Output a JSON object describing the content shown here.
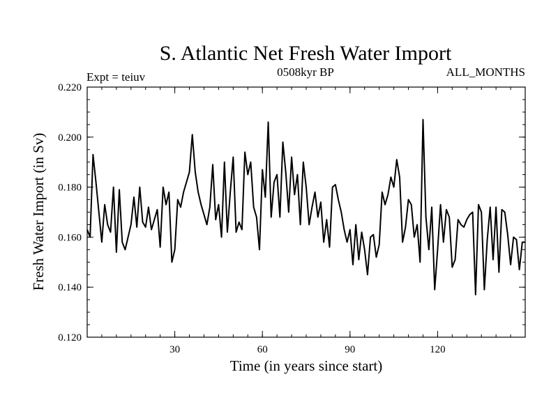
{
  "chart_data": {
    "type": "line",
    "title": "S. Atlantic Net Fresh Water Import",
    "subtitle": "0508kyr BP",
    "left_annotation": "Expt = teiuv",
    "right_annotation": "ALL_MONTHS",
    "xlabel": "Time (in years since start)",
    "ylabel": "Fresh Water Import (in Sv)",
    "xlim": [
      0,
      150
    ],
    "ylim": [
      0.12,
      0.22
    ],
    "xticks": [
      30,
      60,
      90,
      120
    ],
    "yticks": [
      0.12,
      0.14,
      0.16,
      0.18,
      0.2,
      0.22
    ],
    "ytick_labels": [
      "0.120",
      "0.140",
      "0.160",
      "0.180",
      "0.200",
      "0.220"
    ],
    "xminor_step": 5,
    "yminor_step": 0.005,
    "grid": false,
    "series": [
      {
        "name": "Net Fresh Water Import",
        "color": "#000000",
        "x": [
          0,
          1,
          2,
          3,
          4,
          5,
          6,
          7,
          8,
          9,
          10,
          11,
          12,
          13,
          14,
          15,
          16,
          17,
          18,
          19,
          20,
          21,
          22,
          23,
          24,
          25,
          26,
          27,
          28,
          29,
          30,
          31,
          32,
          33,
          34,
          35,
          36,
          37,
          38,
          39,
          40,
          41,
          42,
          43,
          44,
          45,
          46,
          47,
          48,
          49,
          50,
          51,
          52,
          53,
          54,
          55,
          56,
          57,
          58,
          59,
          60,
          61,
          62,
          63,
          64,
          65,
          66,
          67,
          68,
          69,
          70,
          71,
          72,
          73,
          74,
          75,
          76,
          77,
          78,
          79,
          80,
          81,
          82,
          83,
          84,
          85,
          86,
          87,
          88,
          89,
          90,
          91,
          92,
          93,
          94,
          95,
          96,
          97,
          98,
          99,
          100,
          101,
          102,
          103,
          104,
          105,
          106,
          107,
          108,
          109,
          110,
          111,
          112,
          113,
          114,
          115,
          116,
          117,
          118,
          119,
          120,
          121,
          122,
          123,
          124,
          125,
          126,
          127,
          128,
          129,
          130,
          131,
          132,
          133,
          134,
          135,
          136,
          137,
          138,
          139,
          140,
          141,
          142,
          143,
          144,
          145,
          146,
          147,
          148,
          149,
          150
        ],
        "values": [
          0.163,
          0.16,
          0.193,
          0.182,
          0.17,
          0.158,
          0.173,
          0.165,
          0.162,
          0.18,
          0.154,
          0.179,
          0.158,
          0.155,
          0.16,
          0.165,
          0.176,
          0.164,
          0.18,
          0.166,
          0.164,
          0.172,
          0.163,
          0.167,
          0.171,
          0.156,
          0.18,
          0.173,
          0.178,
          0.15,
          0.155,
          0.175,
          0.172,
          0.178,
          0.182,
          0.186,
          0.201,
          0.186,
          0.178,
          0.173,
          0.169,
          0.165,
          0.172,
          0.189,
          0.167,
          0.173,
          0.16,
          0.19,
          0.162,
          0.178,
          0.192,
          0.162,
          0.166,
          0.163,
          0.194,
          0.185,
          0.19,
          0.172,
          0.168,
          0.155,
          0.187,
          0.176,
          0.206,
          0.168,
          0.182,
          0.185,
          0.168,
          0.198,
          0.186,
          0.17,
          0.192,
          0.177,
          0.185,
          0.165,
          0.19,
          0.18,
          0.165,
          0.172,
          0.178,
          0.168,
          0.174,
          0.158,
          0.167,
          0.156,
          0.18,
          0.181,
          0.175,
          0.17,
          0.163,
          0.158,
          0.163,
          0.149,
          0.165,
          0.151,
          0.162,
          0.155,
          0.145,
          0.16,
          0.161,
          0.152,
          0.157,
          0.178,
          0.173,
          0.177,
          0.184,
          0.18,
          0.191,
          0.184,
          0.158,
          0.164,
          0.175,
          0.173,
          0.16,
          0.165,
          0.15,
          0.207,
          0.168,
          0.155,
          0.172,
          0.139,
          0.155,
          0.173,
          0.158,
          0.171,
          0.168,
          0.148,
          0.151,
          0.167,
          0.165,
          0.164,
          0.167,
          0.169,
          0.17,
          0.137,
          0.173,
          0.17,
          0.139,
          0.159,
          0.172,
          0.151,
          0.172,
          0.146,
          0.171,
          0.17,
          0.161,
          0.149,
          0.16,
          0.159,
          0.147,
          0.158,
          0.158
        ]
      }
    ]
  }
}
